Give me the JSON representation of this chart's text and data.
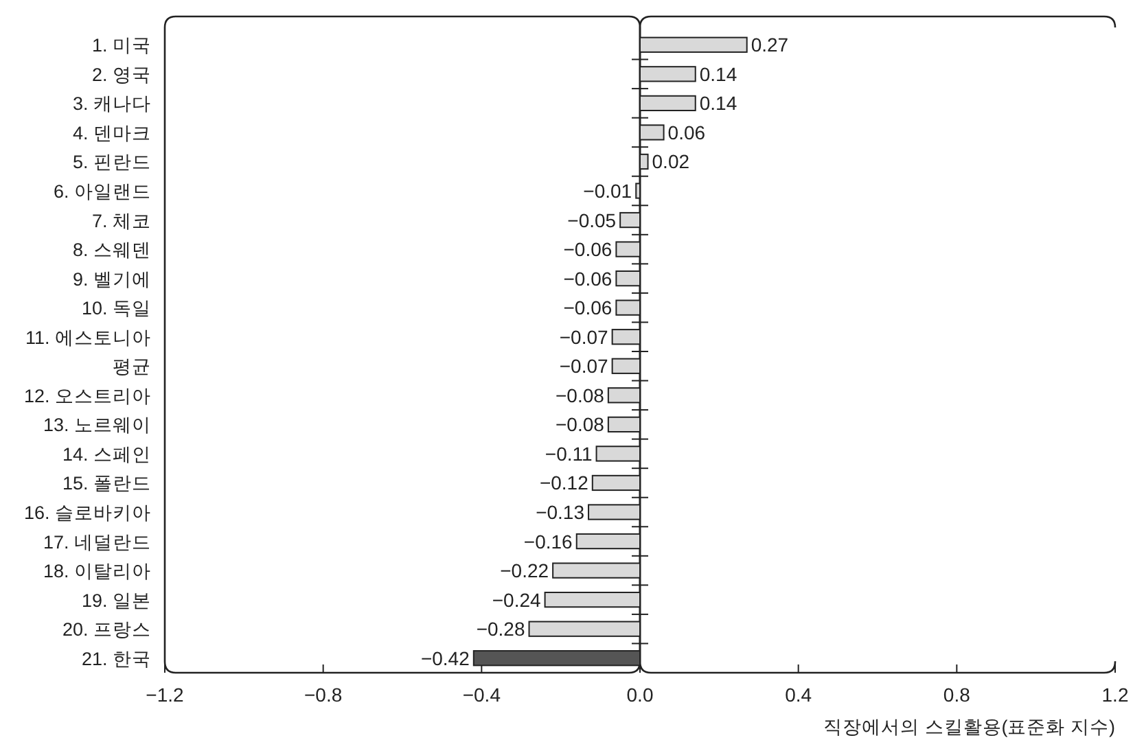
{
  "chart_data": {
    "type": "bar",
    "orientation": "horizontal",
    "categories": [
      "1. 미국",
      "2. 영국",
      "3. 캐나다",
      "4. 덴마크",
      "5. 핀란드",
      "6. 아일랜드",
      "7. 체코",
      "8. 스웨덴",
      "9. 벨기에",
      "10. 독일",
      "11. 에스토니아",
      "평균",
      "12. 오스트리아",
      "13. 노르웨이",
      "14. 스페인",
      "15. 폴란드",
      "16. 슬로바키아",
      "17. 네덜란드",
      "18. 이탈리아",
      "19. 일본",
      "20. 프랑스",
      "21. 한국"
    ],
    "values": [
      0.27,
      0.14,
      0.14,
      0.06,
      0.02,
      -0.01,
      -0.05,
      -0.06,
      -0.06,
      -0.06,
      -0.07,
      -0.07,
      -0.08,
      -0.08,
      -0.11,
      -0.12,
      -0.13,
      -0.16,
      -0.22,
      -0.24,
      -0.28,
      -0.42
    ],
    "colors": [
      "#d9d9d9",
      "#d9d9d9",
      "#d9d9d9",
      "#d9d9d9",
      "#d9d9d9",
      "#d9d9d9",
      "#d9d9d9",
      "#d9d9d9",
      "#d9d9d9",
      "#d9d9d9",
      "#d9d9d9",
      "#d9d9d9",
      "#d9d9d9",
      "#d9d9d9",
      "#d9d9d9",
      "#d9d9d9",
      "#d9d9d9",
      "#d9d9d9",
      "#d9d9d9",
      "#d9d9d9",
      "#d9d9d9",
      "#555555"
    ],
    "xlim": [
      -1.2,
      1.2
    ],
    "xticks": [
      {
        "value": -1.2,
        "label": "−1.2"
      },
      {
        "value": -0.8,
        "label": "−0.8"
      },
      {
        "value": -0.4,
        "label": "−0.4"
      },
      {
        "value": 0,
        "label": "0.0"
      },
      {
        "value": 0.4,
        "label": "0.4"
      },
      {
        "value": 0.8,
        "label": "0.8"
      },
      {
        "value": 1.2,
        "label": "1.2"
      }
    ],
    "xlabel": "직장에서의 스킬활용(표준화 지수)",
    "data_labels": true
  }
}
